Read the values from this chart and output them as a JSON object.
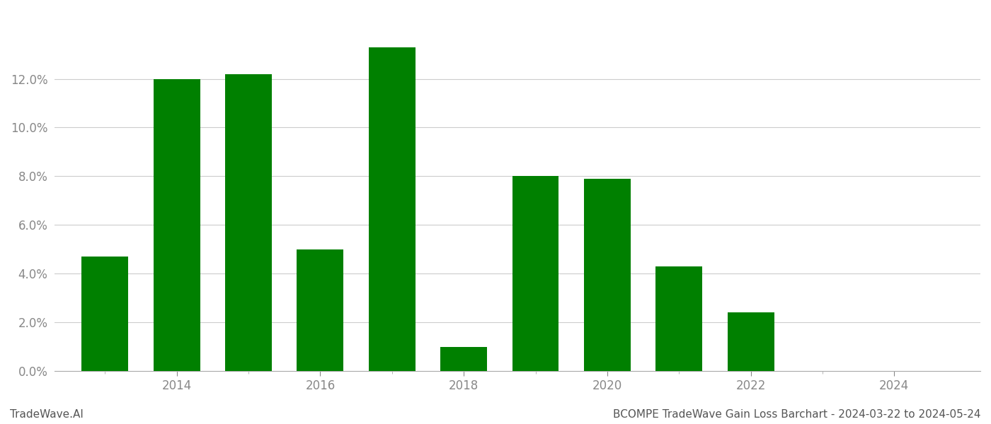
{
  "years": [
    2013,
    2014,
    2015,
    2016,
    2017,
    2018,
    2019,
    2020,
    2021,
    2022,
    2023
  ],
  "values": [
    0.047,
    0.12,
    0.122,
    0.05,
    0.133,
    0.01,
    0.08,
    0.079,
    0.043,
    0.024,
    0.0
  ],
  "bar_color": "#008000",
  "footer_left": "TradeWave.AI",
  "footer_right": "BCOMPE TradeWave Gain Loss Barchart - 2024-03-22 to 2024-05-24",
  "ylim_max": 0.148,
  "yticks": [
    0.0,
    0.02,
    0.04,
    0.06,
    0.08,
    0.1,
    0.12
  ],
  "background_color": "#ffffff",
  "grid_color": "#cccccc",
  "bar_width": 0.65,
  "xlim_min": 2012.3,
  "xlim_max": 2025.2,
  "xtick_years": [
    2014,
    2016,
    2018,
    2020,
    2022,
    2024
  ],
  "xtick_minor_years": [
    2013,
    2014,
    2015,
    2016,
    2017,
    2018,
    2019,
    2020,
    2021,
    2022,
    2023,
    2024
  ]
}
